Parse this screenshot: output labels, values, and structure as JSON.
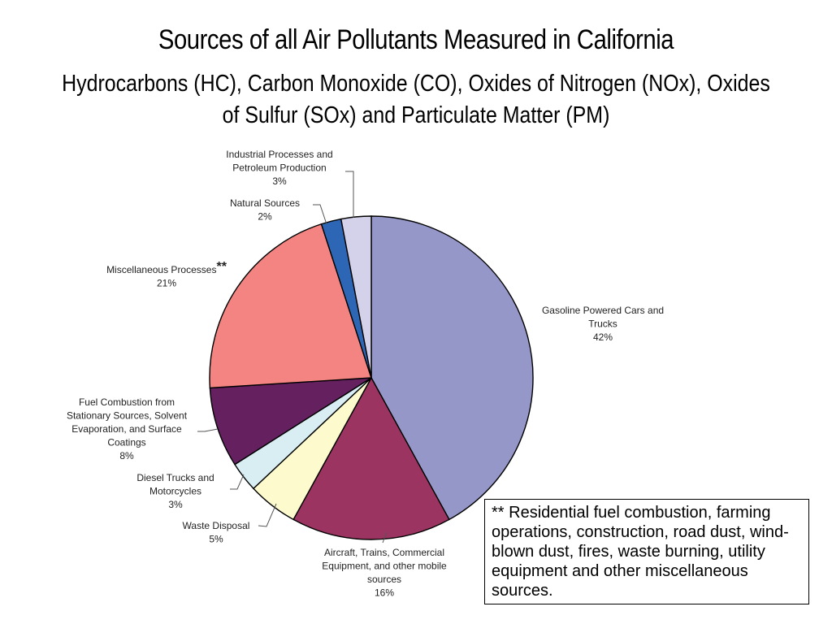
{
  "chart_data": {
    "type": "pie",
    "title": "Sources of all Air Pollutants Measured in California",
    "subtitle": "Hydrocarbons (HC), Carbon Monoxide (CO), Oxides of Nitrogen (NOx), Oxides of Sulfur (SOx) and Particulate Matter (PM)",
    "slices": [
      {
        "label": [
          "Gasoline Powered Cars and",
          "Trucks"
        ],
        "pct_text": "42%",
        "value": 42,
        "color": "#9597c9"
      },
      {
        "label": [
          "Aircraft, Trains, Commercial",
          "Equipment, and other mobile",
          "sources"
        ],
        "pct_text": "16%",
        "value": 16,
        "color": "#9b3461"
      },
      {
        "label": [
          "Waste Disposal"
        ],
        "pct_text": "5%",
        "value": 5,
        "color": "#fdfacd"
      },
      {
        "label": [
          "Diesel Trucks and",
          "Motorcycles"
        ],
        "pct_text": "3%",
        "value": 3,
        "color": "#d8eef2"
      },
      {
        "label": [
          "Fuel Combustion from",
          "Stationary Sources, Solvent",
          "Evaporation, and Surface",
          "Coatings"
        ],
        "pct_text": "8%",
        "value": 8,
        "color": "#64205f"
      },
      {
        "label": [
          "Miscellaneous Processes"
        ],
        "marker": "**",
        "pct_text": "21%",
        "value": 21,
        "color": "#f48482"
      },
      {
        "label": [
          "Natural Sources"
        ],
        "pct_text": "2%",
        "value": 2,
        "color": "#2c66b5"
      },
      {
        "label": [
          "Industrial Processes and",
          "Petroleum Production"
        ],
        "pct_text": "3%",
        "value": 3,
        "color": "#d3d2ea"
      }
    ]
  },
  "note": "** Residential fuel combustion, farming operations, construction, road dust, wind-blown dust, fires, waste burning, utility equipment and other miscellaneous sources."
}
